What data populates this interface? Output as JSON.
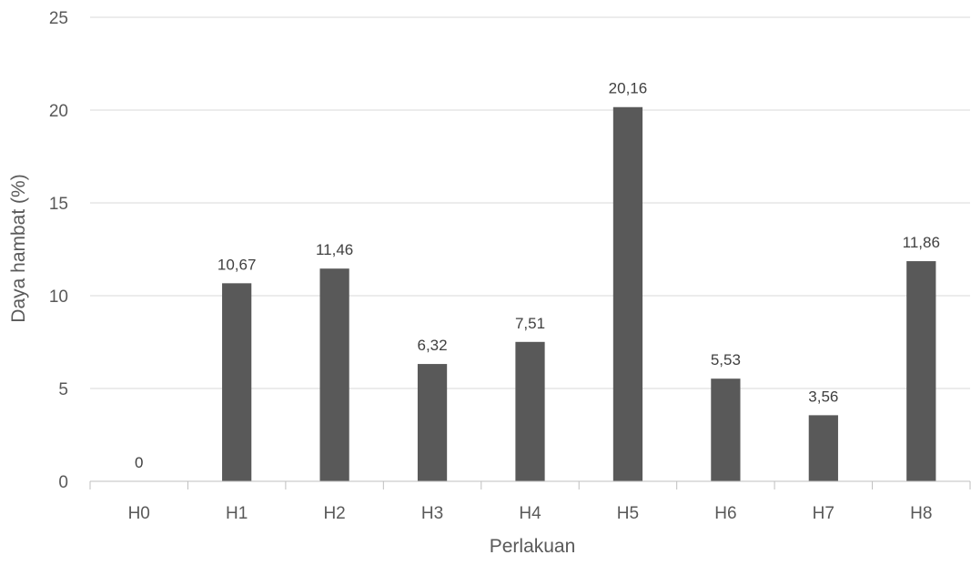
{
  "chart_data": {
    "type": "bar",
    "categories": [
      "H0",
      "H1",
      "H2",
      "H3",
      "H4",
      "H5",
      "H6",
      "H7",
      "H8"
    ],
    "values": [
      0,
      10.67,
      11.46,
      6.32,
      7.51,
      20.16,
      5.53,
      3.56,
      11.86
    ],
    "data_labels": [
      "0",
      "10,67",
      "11,46",
      "6,32",
      "7,51",
      "20,16",
      "5,53",
      "3,56",
      "11,86"
    ],
    "y_ticks": [
      0,
      5,
      10,
      15,
      20,
      25
    ],
    "y_tick_labels": [
      "0",
      "5",
      "10",
      "15",
      "20",
      "25"
    ],
    "xlabel": "Perlakuan",
    "ylabel": "Daya hambat (%)",
    "ylim": [
      0,
      25
    ],
    "grid": true,
    "legend": "none",
    "colors": {
      "bar": "#595959",
      "grid": "#d9d9d9",
      "axis": "#bfbfbf",
      "text": "#595959",
      "label": "#404040"
    }
  }
}
